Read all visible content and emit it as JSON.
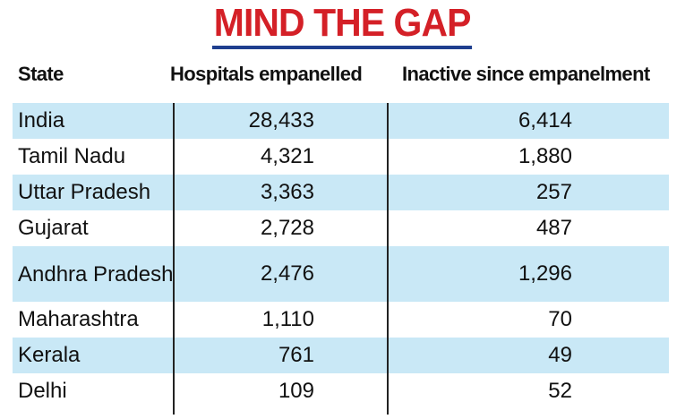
{
  "chart_data": {
    "type": "table",
    "title": "MIND THE GAP",
    "columns": [
      "State",
      "Hospitals empanelled",
      "Inactive since empanelment"
    ],
    "rows": [
      {
        "state": "India",
        "hospitals": "28,433",
        "inactive": "6,414"
      },
      {
        "state": "Tamil Nadu",
        "hospitals": "4,321",
        "inactive": "1,880"
      },
      {
        "state": "Uttar Pradesh",
        "hospitals": "3,363",
        "inactive": "257"
      },
      {
        "state": "Gujarat",
        "hospitals": "2,728",
        "inactive": "487"
      },
      {
        "state": "Andhra Pradesh",
        "hospitals": "2,476",
        "inactive": "1,296"
      },
      {
        "state": "Maharashtra",
        "hospitals": "1,110",
        "inactive": "70"
      },
      {
        "state": "Kerala",
        "hospitals": "761",
        "inactive": "49"
      },
      {
        "state": "Delhi",
        "hospitals": "109",
        "inactive": "52"
      }
    ]
  },
  "colors": {
    "title": "#d42027",
    "title_underline": "#1f3f8f",
    "row_shade": "#c9e8f6",
    "text": "#111111"
  }
}
